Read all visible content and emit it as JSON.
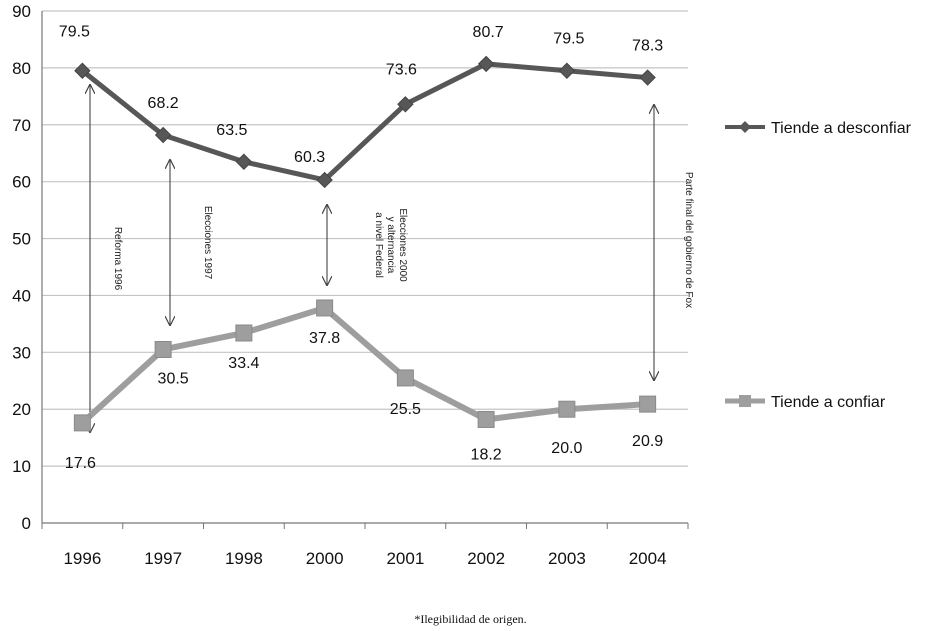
{
  "chart_data": {
    "type": "line",
    "categories": [
      "1996",
      "1997",
      "1998",
      "2000",
      "2001",
      "2002",
      "2003",
      "2004"
    ],
    "ylim": [
      0,
      90
    ],
    "yticks": [
      "0",
      "10",
      "20",
      "30",
      "40",
      "50",
      "60",
      "70",
      "80",
      "90"
    ],
    "grid": true,
    "legend_position": "right",
    "series": [
      {
        "name": "Tiende a desconfiar",
        "marker": "diamond",
        "color": "#575757",
        "values": [
          79.5,
          68.2,
          63.5,
          60.3,
          73.6,
          80.7,
          79.5,
          78.3
        ],
        "labels": [
          "79.5",
          "68.2",
          "63.5",
          "60.3",
          "73.6",
          "80.7",
          "79.5",
          "78.3"
        ]
      },
      {
        "name": "Tiende a confiar",
        "marker": "square",
        "color": "#9e9e9e",
        "values": [
          17.6,
          30.5,
          33.4,
          37.8,
          25.5,
          18.2,
          20.0,
          20.9
        ],
        "labels": [
          "17.6",
          "30.5",
          "33.4",
          "37.8",
          "25.5",
          "18.2",
          "20.0",
          "20.9"
        ]
      }
    ],
    "annotations": [
      {
        "lines": [
          "Reforma 1996"
        ],
        "category": "1996",
        "span": [
          79.5,
          17.6
        ]
      },
      {
        "lines": [
          "Elecciones 1997"
        ],
        "category": "1997",
        "span": [
          68.2,
          30.5
        ]
      },
      {
        "lines": [
          "Elecciones 2000",
          "y alternancia",
          "a nivel Federal"
        ],
        "category": "2000",
        "span": [
          60.3,
          37.8
        ]
      },
      {
        "lines": [
          "Parte final del gobierno de Fox"
        ],
        "category": "2004",
        "span": [
          78.3,
          20.9
        ]
      }
    ]
  },
  "footnote": "*Ilegibilidad de origen."
}
